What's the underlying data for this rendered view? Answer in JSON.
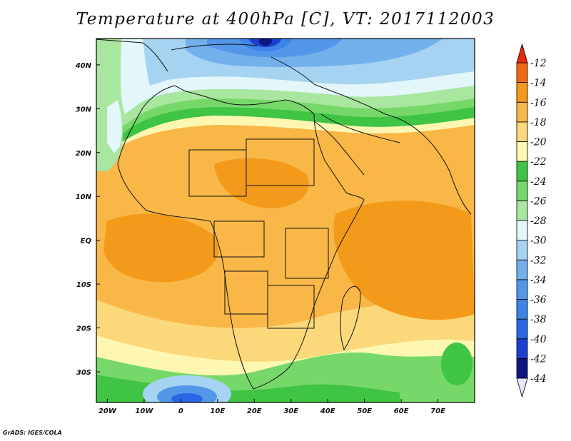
{
  "title": "Temperature at 400hPa [C], VT: 2017112003",
  "credit": "GrADS: IGES/COLA",
  "map": {
    "projection": "latlon",
    "lon_range": [
      -23,
      80
    ],
    "lat_range": [
      -37,
      46
    ],
    "lon_ticks": [
      {
        "value": -20,
        "label": "20W"
      },
      {
        "value": -10,
        "label": "10W"
      },
      {
        "value": 0,
        "label": "0"
      },
      {
        "value": 10,
        "label": "10E"
      },
      {
        "value": 20,
        "label": "20E"
      },
      {
        "value": 30,
        "label": "30E"
      },
      {
        "value": 40,
        "label": "40E"
      },
      {
        "value": 50,
        "label": "50E"
      },
      {
        "value": 60,
        "label": "60E"
      },
      {
        "value": 70,
        "label": "70E"
      }
    ],
    "lat_ticks": [
      {
        "value": 40,
        "label": "40N"
      },
      {
        "value": 30,
        "label": "30N"
      },
      {
        "value": 20,
        "label": "20N"
      },
      {
        "value": 10,
        "label": "10N"
      },
      {
        "value": 0,
        "label": "EQ"
      },
      {
        "value": -10,
        "label": "10S"
      },
      {
        "value": -20,
        "label": "20S"
      },
      {
        "value": -30,
        "label": "30S"
      }
    ]
  },
  "colorbar": {
    "levels": [
      "-44",
      "-42",
      "-40",
      "-38",
      "-36",
      "-34",
      "-32",
      "-30",
      "-28",
      "-26",
      "-24",
      "-22",
      "-20",
      "-18",
      "-16",
      "-14",
      "-12"
    ],
    "colors": [
      "#e6e6fa",
      "#0d1580",
      "#1c3fd1",
      "#2a66e3",
      "#3d84e8",
      "#5398e8",
      "#74b0ec",
      "#a6d3f2",
      "#e3f7fb",
      "#a9e6a0",
      "#77d86a",
      "#3fc443",
      "#fdf7b2",
      "#fbd87a",
      "#f9b747",
      "#f39a1a",
      "#ef6b0f",
      "#e62a10"
    ]
  }
}
